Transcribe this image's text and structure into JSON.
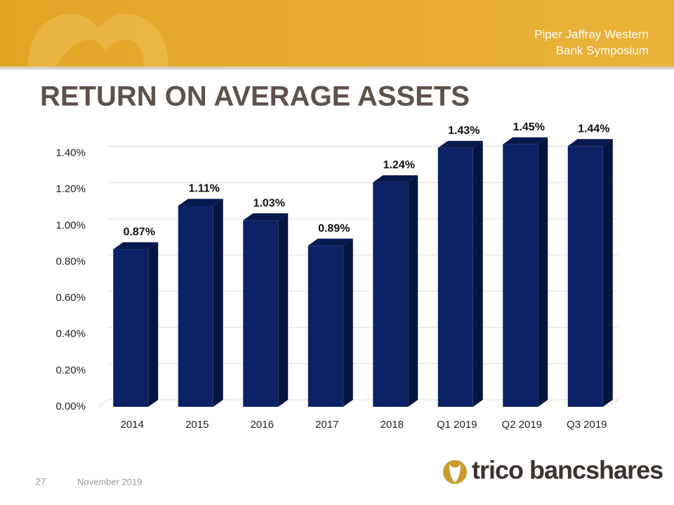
{
  "header": {
    "event": [
      "Piper Jaffray Western",
      "Bank Symposium"
    ]
  },
  "title": "RETURN ON AVERAGE ASSETS",
  "chart_data": {
    "type": "bar",
    "categories": [
      "2014",
      "2015",
      "2016",
      "2017",
      "2018",
      "Q1 2019",
      "Q2 2019",
      "Q3 2019"
    ],
    "values": [
      0.87,
      1.11,
      1.03,
      0.89,
      1.24,
      1.43,
      1.45,
      1.44
    ],
    "value_labels": [
      "0.87%",
      "1.11%",
      "1.03%",
      "0.89%",
      "1.24%",
      "1.43%",
      "1.45%",
      "1.44%"
    ],
    "color": "#0b2266",
    "ylim": [
      0,
      1.6
    ],
    "yticks": [
      {
        "value": 0,
        "label": "0.00%"
      },
      {
        "value": 0.2,
        "label": "0.20%"
      },
      {
        "value": 0.4,
        "label": "0.40%"
      },
      {
        "value": 0.6,
        "label": "0.60%"
      },
      {
        "value": 0.8,
        "label": "0.80%"
      },
      {
        "value": 1.0,
        "label": "1.00%"
      },
      {
        "value": 1.2,
        "label": "1.20%"
      },
      {
        "value": 1.4,
        "label": "1.40%"
      }
    ],
    "grid": true
  },
  "footer": {
    "page": "27",
    "date": "November 2019",
    "logo": "trico bancshares"
  }
}
